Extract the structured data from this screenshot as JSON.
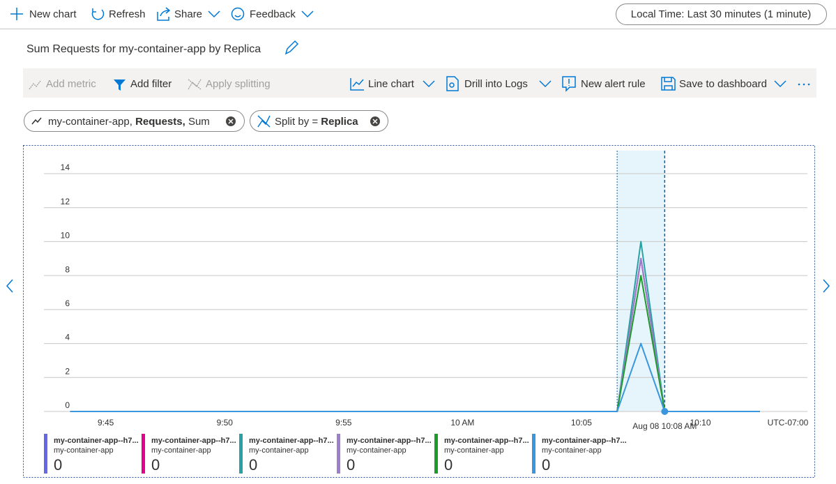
{
  "toolbar": {
    "new_chart": "New chart",
    "refresh": "Refresh",
    "share": "Share",
    "feedback": "Feedback",
    "time_range": "Local Time: Last 30 minutes (1 minute)"
  },
  "command_bar": {
    "add_metric": "Add metric",
    "add_filter": "Add filter",
    "apply_splitting": "Apply splitting",
    "line_chart": "Line chart",
    "drill_into_logs": "Drill into Logs",
    "new_alert_rule": "New alert rule",
    "save_to_dashboard": "Save to dashboard"
  },
  "pills": {
    "metric": {
      "resource": "my-container-app,",
      "metric": "Requests,",
      "aggregation": "Sum"
    },
    "split": {
      "label": "Split by =",
      "value": "Replica"
    }
  },
  "chart_data": {
    "type": "line",
    "title": "Sum Requests for my-container-app by Replica",
    "x": [
      43.5,
      44.5,
      45.5,
      46.5,
      47.5,
      48.5,
      49.5,
      50.5,
      51.5,
      52.5,
      53.5,
      54.5,
      55.5,
      56.5,
      57.5,
      58.5,
      59.5,
      60.5,
      61.5,
      62.5,
      63.5,
      64.5,
      65.5,
      66.5,
      67.5,
      68.5,
      69.5,
      70.5,
      71.5,
      72.5
    ],
    "xlim": [
      42.4,
      74.5
    ],
    "xticks": [
      {
        "value": 45,
        "label": "9:45"
      },
      {
        "value": 50,
        "label": "9:50"
      },
      {
        "value": 55,
        "label": "9:55"
      },
      {
        "value": 60,
        "label": "10 AM"
      },
      {
        "value": 65,
        "label": "10:05"
      },
      {
        "value": 70,
        "label": "10:10"
      }
    ],
    "ylim": [
      0,
      14
    ],
    "yticks": [
      0,
      2,
      4,
      6,
      8,
      10,
      12,
      14
    ],
    "grid": true,
    "timezone": "UTC-07:00",
    "highlight": {
      "label": "Aug 08 10:08 AM",
      "x": [
        66.5,
        68.5
      ],
      "point": 25
    },
    "series": [
      {
        "name": "my-container-app--h7...",
        "resource": "my-container-app",
        "legend_value": 0,
        "color": "#6467e8",
        "values": [
          0,
          0,
          0,
          0,
          0,
          0,
          0,
          0,
          0,
          0,
          0,
          0,
          0,
          0,
          0,
          0,
          0,
          0,
          0,
          0,
          0,
          0,
          0,
          0,
          9,
          0,
          0,
          0,
          0,
          0
        ]
      },
      {
        "name": "my-container-app--h7...",
        "resource": "my-container-app",
        "legend_value": 0,
        "color": "#e3008c",
        "values": [
          0,
          0,
          0,
          0,
          0,
          0,
          0,
          0,
          0,
          0,
          0,
          0,
          0,
          0,
          0,
          0,
          0,
          0,
          0,
          0,
          0,
          0,
          0,
          0,
          9,
          0,
          0,
          0,
          0,
          0
        ]
      },
      {
        "name": "my-container-app--h7...",
        "resource": "my-container-app",
        "legend_value": 0,
        "color": "#2aa0a4",
        "values": [
          0,
          0,
          0,
          0,
          0,
          0,
          0,
          0,
          0,
          0,
          0,
          0,
          0,
          0,
          0,
          0,
          0,
          0,
          0,
          0,
          0,
          0,
          0,
          0,
          10,
          0,
          0,
          0,
          0,
          0
        ]
      },
      {
        "name": "my-container-app--h7...",
        "resource": "my-container-app",
        "legend_value": 0,
        "color": "#9c7ecb",
        "values": [
          0,
          0,
          0,
          0,
          0,
          0,
          0,
          0,
          0,
          0,
          0,
          0,
          0,
          0,
          0,
          0,
          0,
          0,
          0,
          0,
          0,
          0,
          0,
          0,
          9,
          0,
          0,
          0,
          0,
          0
        ]
      },
      {
        "name": "my-container-app--h7...",
        "resource": "my-container-app",
        "legend_value": 0,
        "color": "#1d9b2a",
        "values": [
          0,
          0,
          0,
          0,
          0,
          0,
          0,
          0,
          0,
          0,
          0,
          0,
          0,
          0,
          0,
          0,
          0,
          0,
          0,
          0,
          0,
          0,
          0,
          0,
          8,
          0,
          0,
          0,
          0,
          0
        ]
      },
      {
        "name": "my-container-app--h7...",
        "resource": "my-container-app",
        "legend_value": 0,
        "color": "#3a96dd",
        "values": [
          0,
          0,
          0,
          0,
          0,
          0,
          0,
          0,
          0,
          0,
          0,
          0,
          0,
          0,
          0,
          0,
          0,
          0,
          0,
          0,
          0,
          0,
          0,
          0,
          4,
          0,
          0,
          0,
          0,
          0
        ]
      }
    ]
  }
}
